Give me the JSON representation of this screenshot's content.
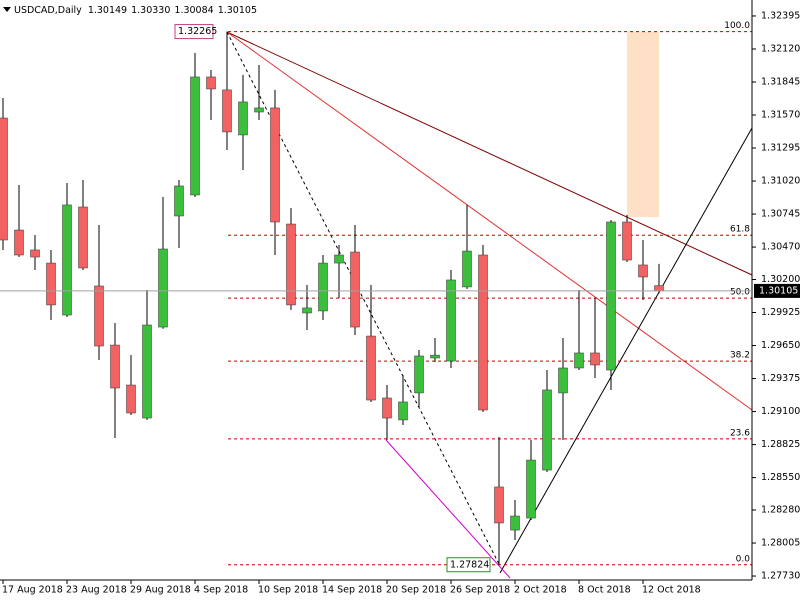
{
  "chart_data": {
    "type": "candlestick",
    "header": {
      "symbol": "USDCAD,Daily",
      "ohlc": [
        "1.30149",
        "1.30330",
        "1.30084",
        "1.30105"
      ]
    },
    "categories": [
      "17 Aug 2018",
      null,
      null,
      null,
      "23 Aug 2018",
      null,
      null,
      null,
      "29 Aug 2018",
      null,
      null,
      null,
      "4 Sep 2018",
      null,
      null,
      null,
      "10 Sep 2018",
      null,
      null,
      null,
      "14 Sep 2018",
      null,
      null,
      null,
      "20 Sep 2018",
      null,
      null,
      null,
      "26 Sep 2018",
      null,
      null,
      null,
      "2 Oct 2018",
      null,
      null,
      null,
      "8 Oct 2018",
      null,
      null,
      null,
      "12 Oct 2018",
      null
    ],
    "open": [
      1.31545,
      1.30612,
      1.30446,
      1.30337,
      1.29904,
      1.30804,
      1.30146,
      1.29654,
      1.29321,
      1.29046,
      1.29804,
      1.30729,
      1.30904,
      1.31887,
      1.31779,
      1.31404,
      1.31595,
      1.31629,
      1.30662,
      1.29921,
      1.29938,
      1.30337,
      1.30429,
      1.29729,
      1.29213,
      1.2903,
      1.29255,
      1.29546,
      1.29521,
      1.30138,
      1.30404,
      1.28472,
      1.28113,
      1.28213,
      1.28613,
      1.29255,
      1.29463,
      1.29588,
      1.29446,
      1.30679,
      1.30321,
      1.30149
    ],
    "high": [
      1.31712,
      1.30987,
      1.30571,
      1.30446,
      1.31004,
      1.31029,
      1.30654,
      1.29838,
      1.29571,
      1.30113,
      1.30887,
      1.31029,
      1.32087,
      1.31945,
      1.32265,
      1.31904,
      1.31987,
      1.31779,
      1.30796,
      1.30154,
      1.30404,
      1.30487,
      1.30654,
      1.30154,
      1.29321,
      1.29405,
      1.29613,
      1.29713,
      1.30279,
      1.30821,
      1.30487,
      1.28888,
      1.28363,
      1.28863,
      1.29446,
      1.29713,
      1.30113,
      1.30046,
      1.30696,
      1.30737,
      1.30529,
      1.3033
    ],
    "low": [
      1.30446,
      1.30387,
      1.30279,
      1.29863,
      1.29888,
      1.30279,
      1.29529,
      1.2888,
      1.29071,
      1.2903,
      1.2979,
      1.30462,
      1.30887,
      1.31529,
      1.31279,
      1.31112,
      1.31529,
      1.30404,
      1.29946,
      1.29779,
      1.29863,
      1.30046,
      1.29738,
      1.2918,
      1.28863,
      1.28988,
      1.29138,
      1.29513,
      1.29463,
      1.30121,
      1.29096,
      1.27824,
      1.2803,
      1.28197,
      1.28597,
      1.28863,
      1.29446,
      1.2938,
      1.2928,
      1.30346,
      1.30029,
      1.30084
    ],
    "close": [
      1.30529,
      1.30404,
      1.30387,
      1.29988,
      1.30821,
      1.30296,
      1.29646,
      1.29296,
      1.29088,
      1.29821,
      1.30454,
      1.30979,
      1.31887,
      1.31787,
      1.31429,
      1.31679,
      1.31629,
      1.30679,
      1.29988,
      1.29963,
      1.30337,
      1.30404,
      1.29804,
      1.29196,
      1.29046,
      1.2918,
      1.29563,
      1.2957,
      1.30196,
      1.30437,
      1.29113,
      1.28172,
      1.2823,
      1.28696,
      1.2928,
      1.29463,
      1.29588,
      1.29488,
      1.30679,
      1.30362,
      1.30221,
      1.30105
    ],
    "up_color": "#3cbf3c",
    "down_color": "#f26262",
    "ylim": [
      1.27697,
      1.32528
    ],
    "yticks": [
      1.32395,
      {
        "value": 1.3212,
        "label": "1.32120"
      },
      1.31845,
      {
        "value": 1.3157,
        "label": "1.31570"
      },
      1.31295,
      {
        "value": 1.3102,
        "label": "1.31020"
      },
      1.30745,
      {
        "value": 1.3047,
        "label": "1.30470"
      },
      {
        "value": 1.302,
        "label": "1.30200"
      },
      1.29925,
      {
        "value": 1.2965,
        "label": "1.29650"
      },
      1.29375,
      {
        "value": 1.291,
        "label": "1.29100"
      },
      1.28825,
      {
        "value": 1.2855,
        "label": "1.28550"
      },
      {
        "value": 1.2828,
        "label": "1.28280"
      },
      1.28005,
      {
        "value": 1.2773,
        "label": "1.27730"
      }
    ],
    "fibonacci": {
      "high": 1.32265,
      "low": 1.27824,
      "levels": [
        {
          "value": 100,
          "label": "100.0"
        },
        61.8,
        {
          "value": 50,
          "label": "50.0"
        },
        38.2,
        23.6,
        {
          "value": 0,
          "label": "0.0"
        }
      ]
    }
  }
}
